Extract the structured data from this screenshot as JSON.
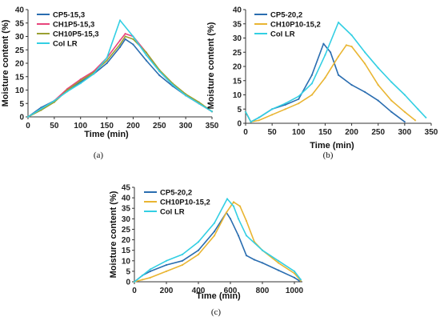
{
  "chart_data": [
    {
      "type": "line",
      "panel_label": "(a)",
      "xlabel": "Time (min)",
      "ylabel": "Moisture content (%)",
      "xlim": [
        0,
        350
      ],
      "ylim": [
        0,
        40
      ],
      "xticks": [
        0,
        50,
        100,
        150,
        200,
        250,
        300,
        350
      ],
      "yticks": [
        0,
        5,
        10,
        15,
        20,
        25,
        30,
        35,
        40
      ],
      "legend_position": "top-left",
      "series": [
        {
          "name": "CP5-15,3",
          "color": "#2a6db0",
          "x": [
            0,
            25,
            50,
            75,
            100,
            125,
            150,
            175,
            185,
            200,
            225,
            250,
            275,
            300,
            325,
            350
          ],
          "y": [
            0,
            3.5,
            6,
            10,
            13,
            16,
            20,
            26,
            29,
            27,
            21,
            15.5,
            11.5,
            8,
            5,
            2
          ]
        },
        {
          "name": "CH1P5-15,3",
          "color": "#e8457c",
          "x": [
            0,
            25,
            50,
            75,
            100,
            125,
            150,
            175,
            185,
            200,
            225,
            250,
            275,
            300,
            325,
            350
          ],
          "y": [
            0,
            3,
            6,
            10.5,
            14,
            17,
            22,
            28.5,
            31,
            30,
            24,
            17,
            12,
            8,
            5,
            2
          ]
        },
        {
          "name": "CH10P5-15,3",
          "color": "#9aa032",
          "x": [
            0,
            25,
            50,
            75,
            100,
            125,
            150,
            175,
            185,
            200,
            225,
            250,
            275,
            300,
            325,
            350
          ],
          "y": [
            0,
            2.5,
            5.5,
            10,
            13.5,
            16.5,
            21,
            27,
            30,
            29,
            24,
            17.5,
            12.5,
            8.5,
            5.5,
            2
          ]
        },
        {
          "name": "Col LR",
          "color": "#33cfe3",
          "x": [
            0,
            25,
            50,
            75,
            100,
            125,
            150,
            175,
            200,
            225,
            250,
            275,
            300,
            325,
            350
          ],
          "y": [
            0,
            3,
            6,
            9.5,
            12.5,
            16,
            22,
            36,
            30,
            23,
            17,
            12,
            8,
            5,
            2
          ]
        }
      ]
    },
    {
      "type": "line",
      "panel_label": "(b)",
      "xlabel": "Time (min)",
      "ylabel": "Moisture content (%)",
      "xlim": [
        0,
        350
      ],
      "ylim": [
        0,
        40
      ],
      "xticks": [
        0,
        50,
        100,
        150,
        200,
        250,
        300,
        350
      ],
      "yticks": [
        0,
        5,
        10,
        15,
        20,
        25,
        30,
        35,
        40
      ],
      "legend_position": "top-left",
      "series": [
        {
          "name": "CP5-20,2",
          "color": "#2a6db0",
          "x": [
            0,
            10,
            25,
            50,
            75,
            100,
            125,
            147,
            160,
            175,
            200,
            225,
            250,
            275,
            300
          ],
          "y": [
            4,
            0.5,
            2,
            5,
            6.5,
            8.5,
            17,
            28,
            25,
            17,
            13.5,
            11,
            8,
            4,
            0.5
          ]
        },
        {
          "name": "CH10P10-15,2",
          "color": "#e9b532",
          "x": [
            0,
            10,
            25,
            50,
            75,
            100,
            125,
            150,
            175,
            190,
            200,
            225,
            250,
            275,
            300,
            320
          ],
          "y": [
            4,
            0.5,
            1,
            3,
            5,
            7,
            10,
            16,
            23.5,
            27.5,
            27,
            21,
            13.5,
            8,
            4,
            1
          ]
        },
        {
          "name": "Col LR",
          "color": "#33cfe3",
          "x": [
            0,
            10,
            25,
            50,
            75,
            100,
            125,
            150,
            175,
            200,
            225,
            250,
            275,
            300,
            325,
            340
          ],
          "y": [
            4,
            0.5,
            2,
            5,
            7,
            9.5,
            14,
            24,
            35.5,
            31,
            25,
            19.5,
            14.5,
            10,
            5,
            2
          ]
        }
      ]
    },
    {
      "type": "line",
      "panel_label": "(c)",
      "xlabel": "Time (min)",
      "ylabel": "Moisture content (%)",
      "xlim": [
        0,
        1050
      ],
      "ylim": [
        0,
        45
      ],
      "xticks": [
        0,
        200,
        400,
        600,
        800,
        1000
      ],
      "yticks": [
        0,
        5,
        10,
        15,
        20,
        25,
        30,
        35,
        40,
        45
      ],
      "legend_position": "top-left",
      "series": [
        {
          "name": "CP5-20,2",
          "color": "#2a6db0",
          "x": [
            0,
            50,
            100,
            200,
            300,
            400,
            500,
            575,
            600,
            650,
            700,
            750,
            800,
            900,
            1000,
            1030
          ],
          "y": [
            0,
            3,
            5,
            8,
            10,
            15,
            24,
            33,
            30,
            22,
            12.5,
            10.5,
            9,
            5.5,
            2,
            0.5
          ]
        },
        {
          "name": "CH10P10-15,2",
          "color": "#e9b532",
          "x": [
            0,
            50,
            100,
            200,
            300,
            400,
            500,
            575,
            620,
            660,
            700,
            750,
            800,
            900,
            1000,
            1040
          ],
          "y": [
            0,
            1,
            2,
            5,
            8,
            13,
            22,
            33,
            38,
            36,
            29,
            19,
            15,
            9,
            4,
            0.5
          ]
        },
        {
          "name": "Col LR",
          "color": "#33cfe3",
          "x": [
            0,
            50,
            100,
            200,
            300,
            400,
            500,
            580,
            620,
            650,
            700,
            800,
            900,
            1000,
            1040
          ],
          "y": [
            0,
            3,
            6,
            10,
            13,
            19,
            28,
            39.5,
            36,
            30,
            22,
            15,
            10,
            5,
            1
          ]
        }
      ]
    }
  ]
}
